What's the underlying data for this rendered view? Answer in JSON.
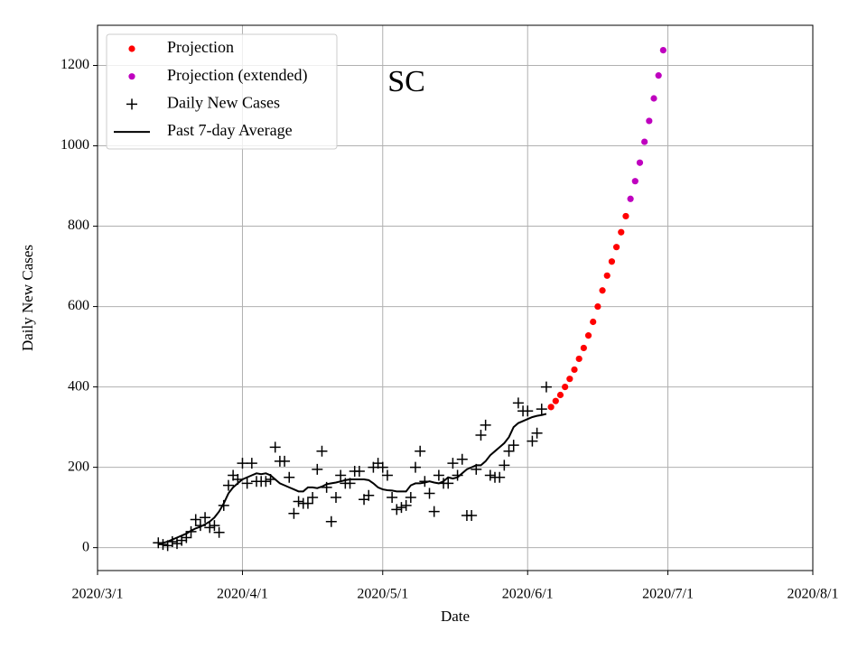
{
  "chart_data": {
    "type": "line",
    "annotation": "SC",
    "xlabel": "Date",
    "ylabel": "Daily New Cases",
    "xlim": [
      "2020-03-01",
      "2020-08-01"
    ],
    "xticks": [
      {
        "value": "2020-03-01",
        "label": "2020/3/1"
      },
      {
        "value": "2020-04-01",
        "label": "2020/4/1"
      },
      {
        "value": "2020-05-01",
        "label": "2020/5/1"
      },
      {
        "value": "2020-06-01",
        "label": "2020/6/1"
      },
      {
        "value": "2020-07-01",
        "label": "2020/7/1"
      },
      {
        "value": "2020-08-01",
        "label": "2020/8/1"
      }
    ],
    "ylim": [
      -57,
      1300
    ],
    "yticks": [
      0,
      200,
      400,
      600,
      800,
      1000,
      1200
    ],
    "grid": true,
    "legend": "upper left",
    "series": [
      {
        "name": "Projection",
        "color": "#ff0000",
        "marker": "o",
        "x": [
          "2020-06-06",
          "2020-06-07",
          "2020-06-08",
          "2020-06-09",
          "2020-06-10",
          "2020-06-11",
          "2020-06-12",
          "2020-06-13",
          "2020-06-14",
          "2020-06-15",
          "2020-06-16",
          "2020-06-17",
          "2020-06-18",
          "2020-06-19",
          "2020-06-20",
          "2020-06-21",
          "2020-06-22"
        ],
        "values": [
          350,
          365,
          380,
          400,
          420,
          443,
          470,
          497,
          528,
          562,
          600,
          640,
          677,
          712,
          748,
          785,
          825
        ]
      },
      {
        "name": "Projection (extended)",
        "color": "#bf00bf",
        "marker": "o",
        "x": [
          "2020-06-23",
          "2020-06-24",
          "2020-06-25",
          "2020-06-26",
          "2020-06-27",
          "2020-06-28",
          "2020-06-29",
          "2020-06-30"
        ],
        "values": [
          868,
          912,
          958,
          1010,
          1062,
          1118,
          1175,
          1238
        ]
      },
      {
        "name": "Daily New Cases",
        "color": "#000000",
        "marker": "+",
        "x": [
          "2020-03-14",
          "2020-03-15",
          "2020-03-16",
          "2020-03-17",
          "2020-03-18",
          "2020-03-19",
          "2020-03-20",
          "2020-03-21",
          "2020-03-22",
          "2020-03-23",
          "2020-03-24",
          "2020-03-25",
          "2020-03-26",
          "2020-03-27",
          "2020-03-28",
          "2020-03-29",
          "2020-03-30",
          "2020-03-31",
          "2020-04-01",
          "2020-04-02",
          "2020-04-03",
          "2020-04-04",
          "2020-04-05",
          "2020-04-06",
          "2020-04-07",
          "2020-04-08",
          "2020-04-09",
          "2020-04-10",
          "2020-04-11",
          "2020-04-12",
          "2020-04-13",
          "2020-04-14",
          "2020-04-15",
          "2020-04-16",
          "2020-04-17",
          "2020-04-18",
          "2020-04-19",
          "2020-04-20",
          "2020-04-21",
          "2020-04-22",
          "2020-04-23",
          "2020-04-24",
          "2020-04-25",
          "2020-04-26",
          "2020-04-27",
          "2020-04-28",
          "2020-04-29",
          "2020-04-30",
          "2020-05-01",
          "2020-05-02",
          "2020-05-03",
          "2020-05-04",
          "2020-05-05",
          "2020-05-06",
          "2020-05-07",
          "2020-05-08",
          "2020-05-09",
          "2020-05-10",
          "2020-05-11",
          "2020-05-12",
          "2020-05-13",
          "2020-05-14",
          "2020-05-15",
          "2020-05-16",
          "2020-05-17",
          "2020-05-18",
          "2020-05-19",
          "2020-05-20",
          "2020-05-21",
          "2020-05-22",
          "2020-05-23",
          "2020-05-24",
          "2020-05-25",
          "2020-05-26",
          "2020-05-27",
          "2020-05-28",
          "2020-05-29",
          "2020-05-30",
          "2020-05-31",
          "2020-06-01",
          "2020-06-02",
          "2020-06-03",
          "2020-06-04",
          "2020-06-05"
        ],
        "values": [
          12,
          8,
          5,
          15,
          10,
          18,
          25,
          40,
          70,
          55,
          75,
          50,
          55,
          38,
          105,
          155,
          180,
          170,
          210,
          160,
          210,
          165,
          165,
          165,
          170,
          250,
          215,
          215,
          175,
          85,
          115,
          110,
          110,
          125,
          195,
          240,
          150,
          65,
          125,
          180,
          160,
          160,
          190,
          190,
          120,
          130,
          200,
          210,
          200,
          180,
          125,
          95,
          100,
          105,
          125,
          200,
          240,
          165,
          135,
          90,
          180,
          160,
          160,
          210,
          180,
          220,
          80,
          80,
          195,
          280,
          305,
          180,
          175,
          175,
          205,
          240,
          255,
          360,
          340,
          340,
          265,
          285,
          345,
          400
        ]
      },
      {
        "name": "Past 7-day Average",
        "color": "#000000",
        "marker": null,
        "x": [
          "2020-03-14",
          "2020-03-15",
          "2020-03-16",
          "2020-03-17",
          "2020-03-18",
          "2020-03-19",
          "2020-03-20",
          "2020-03-21",
          "2020-03-22",
          "2020-03-23",
          "2020-03-24",
          "2020-03-25",
          "2020-03-26",
          "2020-03-27",
          "2020-03-28",
          "2020-03-29",
          "2020-03-30",
          "2020-03-31",
          "2020-04-01",
          "2020-04-02",
          "2020-04-03",
          "2020-04-04",
          "2020-04-05",
          "2020-04-06",
          "2020-04-07",
          "2020-04-08",
          "2020-04-09",
          "2020-04-10",
          "2020-04-11",
          "2020-04-12",
          "2020-04-13",
          "2020-04-14",
          "2020-04-15",
          "2020-04-16",
          "2020-04-17",
          "2020-04-18",
          "2020-04-19",
          "2020-04-20",
          "2020-04-21",
          "2020-04-22",
          "2020-04-23",
          "2020-04-24",
          "2020-04-25",
          "2020-04-26",
          "2020-04-27",
          "2020-04-28",
          "2020-04-29",
          "2020-04-30",
          "2020-05-01",
          "2020-05-02",
          "2020-05-03",
          "2020-05-04",
          "2020-05-05",
          "2020-05-06",
          "2020-05-07",
          "2020-05-08",
          "2020-05-09",
          "2020-05-10",
          "2020-05-11",
          "2020-05-12",
          "2020-05-13",
          "2020-05-14",
          "2020-05-15",
          "2020-05-16",
          "2020-05-17",
          "2020-05-18",
          "2020-05-19",
          "2020-05-20",
          "2020-05-21",
          "2020-05-22",
          "2020-05-23",
          "2020-05-24",
          "2020-05-25",
          "2020-05-26",
          "2020-05-27",
          "2020-05-28",
          "2020-05-29",
          "2020-05-30",
          "2020-05-31",
          "2020-06-01",
          "2020-06-02",
          "2020-06-03",
          "2020-06-04",
          "2020-06-05"
        ],
        "values": [
          10,
          12,
          15,
          20,
          25,
          30,
          35,
          42,
          48,
          52,
          58,
          65,
          75,
          90,
          110,
          135,
          150,
          160,
          170,
          175,
          180,
          185,
          183,
          185,
          180,
          170,
          160,
          155,
          150,
          145,
          140,
          140,
          150,
          150,
          148,
          152,
          158,
          160,
          162,
          165,
          168,
          170,
          170,
          170,
          170,
          168,
          160,
          150,
          145,
          143,
          142,
          140,
          140,
          140,
          155,
          160,
          160,
          162,
          165,
          162,
          160,
          165,
          175,
          172,
          175,
          185,
          195,
          200,
          205,
          205,
          215,
          230,
          240,
          250,
          260,
          275,
          300,
          310,
          315,
          320,
          325,
          328,
          330,
          333
        ]
      }
    ]
  }
}
